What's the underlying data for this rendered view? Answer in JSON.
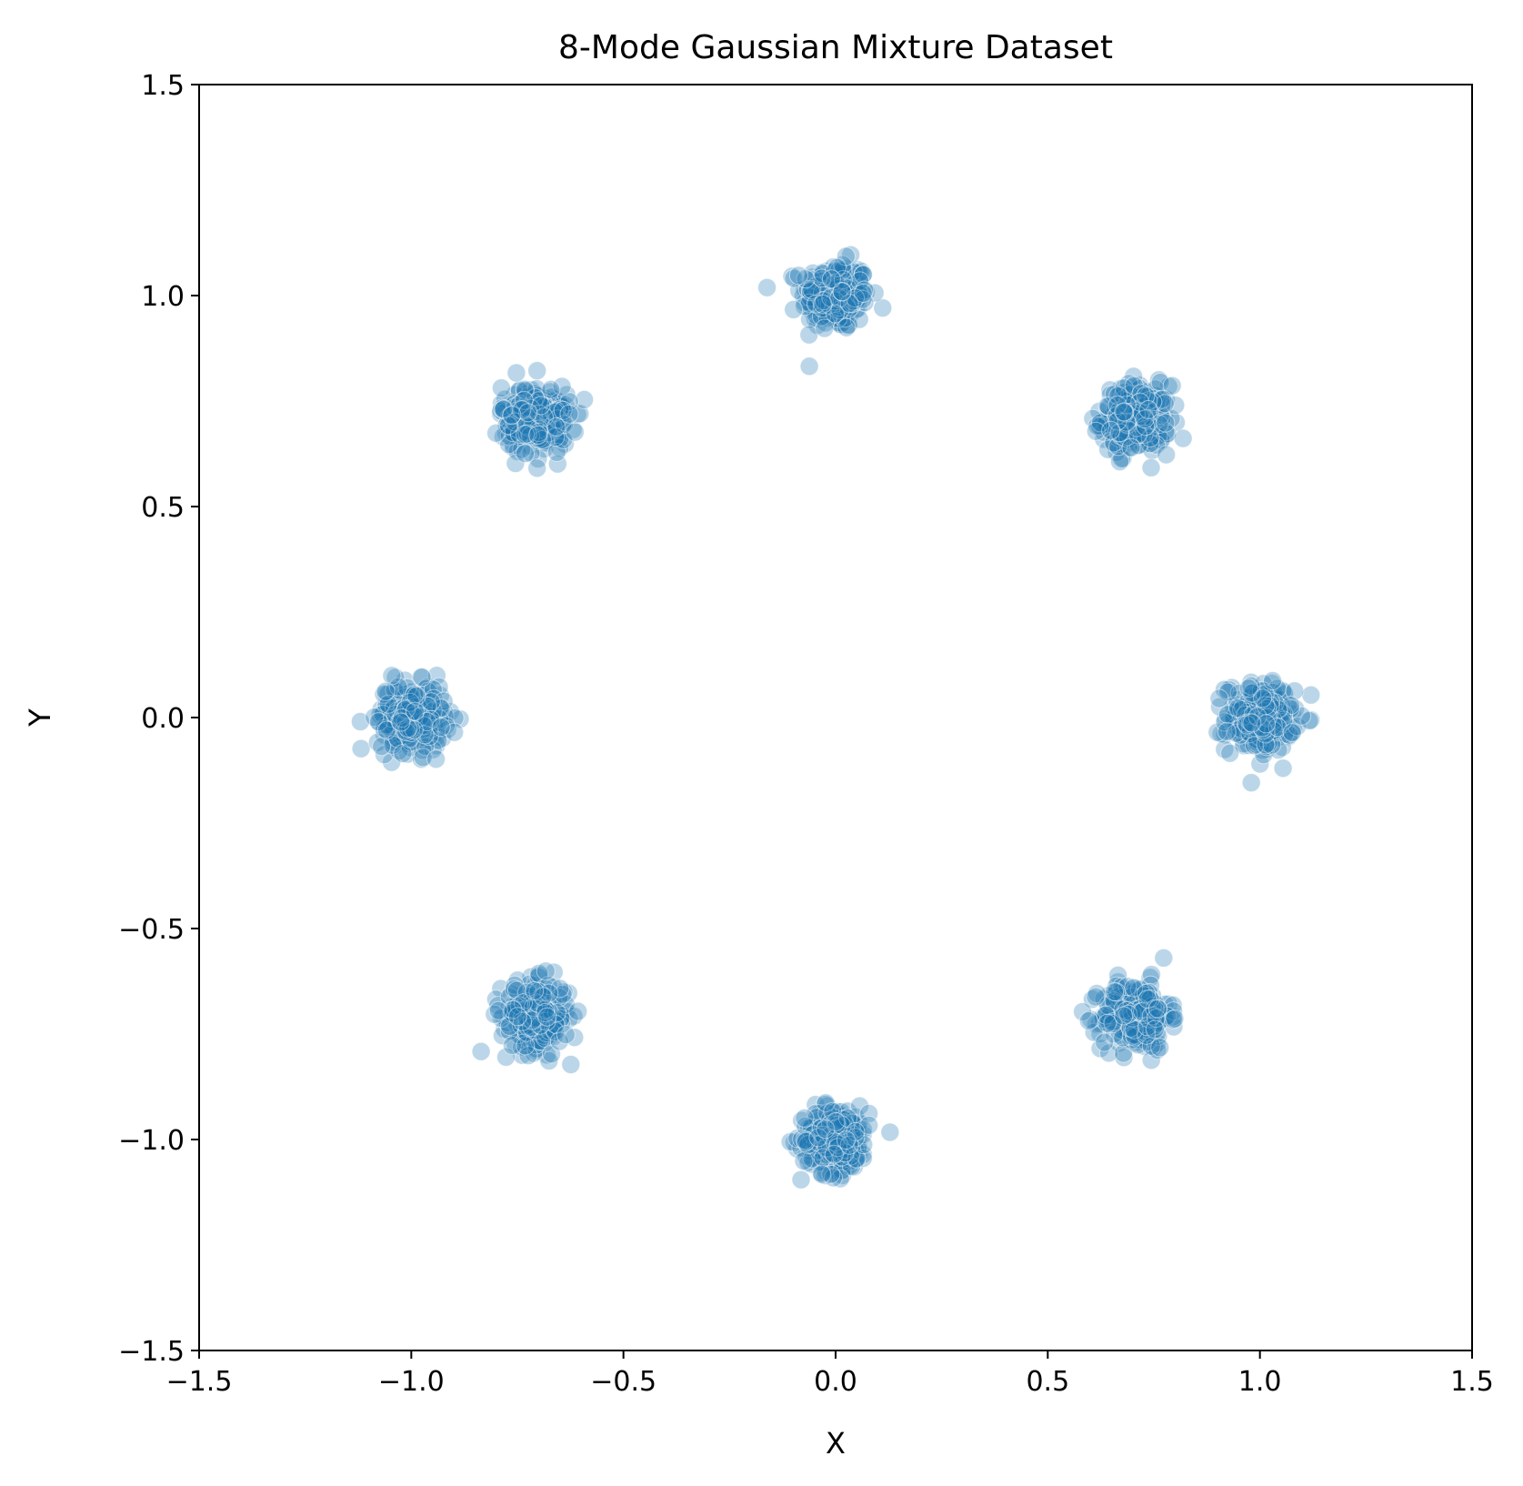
{
  "chart_data": {
    "type": "scatter",
    "title": "8-Mode Gaussian Mixture Dataset",
    "xlabel": "X",
    "ylabel": "Y",
    "xlim": [
      -1.5,
      1.5
    ],
    "ylim": [
      -1.5,
      1.5
    ],
    "x_ticks": [
      -1.5,
      -1.0,
      -0.5,
      0.0,
      0.5,
      1.0,
      1.5
    ],
    "x_tick_labels": [
      "−1.5",
      "−1.0",
      "−0.5",
      "0.0",
      "0.5",
      "1.0",
      "1.5"
    ],
    "y_ticks": [
      -1.5,
      -1.0,
      -0.5,
      0.0,
      0.5,
      1.0,
      1.5
    ],
    "y_tick_labels": [
      "−1.5",
      "−1.0",
      "−0.5",
      "0.0",
      "0.5",
      "1.0",
      "1.5"
    ],
    "grid": false,
    "legend": "none",
    "marker_color": "#1f77b4",
    "marker_edge_color": "#ffffff",
    "marker_alpha": 0.3,
    "cluster_std": 0.04,
    "points_per_cluster": 250,
    "cluster_centers": [
      {
        "x": 0.0,
        "y": 1.0
      },
      {
        "x": 0.707,
        "y": 0.707
      },
      {
        "x": 1.0,
        "y": 0.0
      },
      {
        "x": 0.707,
        "y": -0.707
      },
      {
        "x": 0.0,
        "y": -1.0
      },
      {
        "x": -0.707,
        "y": -0.707
      },
      {
        "x": -1.0,
        "y": 0.0
      },
      {
        "x": -0.707,
        "y": 0.707
      }
    ]
  }
}
